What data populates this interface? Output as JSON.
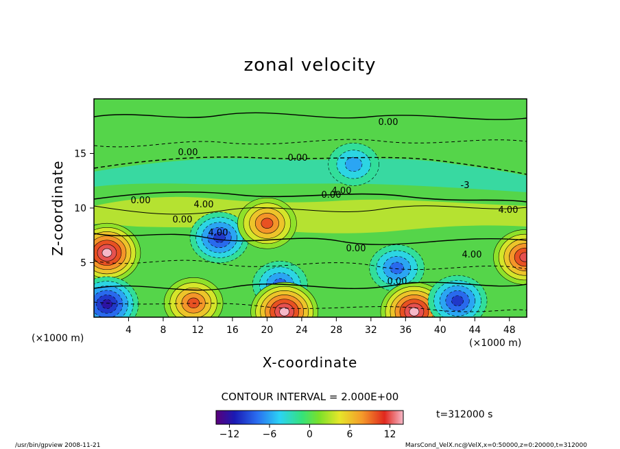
{
  "chart_data": {
    "type": "heatmap",
    "title": "zonal velocity",
    "xlabel": "X-coordinate",
    "ylabel": "Z-coordinate",
    "x_unit": "(×1000 m)",
    "y_unit": "(×1000 m)",
    "xlim": [
      0,
      50
    ],
    "ylim": [
      0,
      20
    ],
    "x_ticks": [
      "4",
      "8",
      "12",
      "16",
      "20",
      "24",
      "28",
      "32",
      "36",
      "40",
      "44",
      "48"
    ],
    "y_ticks": [
      "5",
      "10",
      "15"
    ],
    "contour_interval": "CONTOUR INTERVAL = 2.000E+00",
    "time": "t=312000 s",
    "colorbar_ticks": [
      "−12",
      "−6",
      "0",
      "6",
      "12"
    ],
    "colorbar_range": [
      -14,
      14
    ],
    "contour_labels": [
      "0.00",
      "0.00",
      "0.00",
      "0.00",
      "0.00",
      "0.00",
      "0.00",
      "0.00",
      "4.00",
      "4.00",
      "4.00",
      "4.00",
      "4.00",
      "-3"
    ],
    "features": [
      {
        "x": 1.5,
        "z": 5.9,
        "value": 13,
        "desc": "positive max (left edge)"
      },
      {
        "x": 49.8,
        "z": 5.5,
        "value": 12,
        "desc": "positive max (right edge)"
      },
      {
        "x": 14.5,
        "z": 7.3,
        "value": -10,
        "desc": "negative min"
      },
      {
        "x": 20,
        "z": 8.6,
        "value": 9,
        "desc": "positive max"
      },
      {
        "x": 21.5,
        "z": 3,
        "value": -7,
        "desc": "negative min"
      },
      {
        "x": 35,
        "z": 4.5,
        "value": -7,
        "desc": "negative min"
      },
      {
        "x": 11.5,
        "z": 1.3,
        "value": 9,
        "desc": "positive max (bottom)"
      },
      {
        "x": 22,
        "z": 0.5,
        "value": 13,
        "desc": "positive max (bottom)"
      },
      {
        "x": 37,
        "z": 0.5,
        "value": 13,
        "desc": "positive max (bottom)"
      },
      {
        "x": 1.5,
        "z": 1.2,
        "value": -12,
        "desc": "negative min (bottom)"
      },
      {
        "x": 42,
        "z": 1.5,
        "value": -9,
        "desc": "negative min (bottom)"
      },
      {
        "x": 30,
        "z": 14,
        "value": -6,
        "desc": "negative region (upper)"
      }
    ]
  },
  "footer": {
    "left": "/usr/bin/gpview   2008-11-21",
    "right": "MarsCond_VelX.nc@VelX,x=0:50000,z=0:20000,t=312000"
  },
  "colors": {
    "frame": "#000000",
    "background_field": "#55d54a"
  }
}
